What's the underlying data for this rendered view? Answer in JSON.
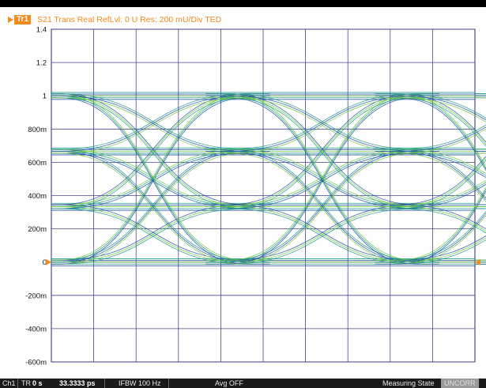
{
  "trace": {
    "badge": "Tr1",
    "label": "S21 Trans Real RefLvl: 0  U Res: 200 mU/Div  TED"
  },
  "chart_data": {
    "type": "line",
    "title": "",
    "xlabel": "",
    "ylabel": "",
    "ylim": [
      -0.6,
      1.4
    ],
    "y_tick_labels": [
      "1.4",
      "1.2",
      "1",
      "800m",
      "600m",
      "400m",
      "200m",
      "0",
      "-200m",
      "-400m",
      "-600m"
    ],
    "x_divisions": 10,
    "grid": true,
    "eye_levels": [
      0,
      0.3333,
      0.6667,
      1
    ],
    "reference_level": 0,
    "note_series": "eye diagram: overlapping 4-level transitions between levels"
  },
  "status": {
    "channel": "Ch1",
    "trace": "TR",
    "time_start": "0 s",
    "time_span": "33.3333 ps",
    "ifbw": "IFBW 100  Hz",
    "avg": "Avg OFF",
    "measuring": "Measuring State",
    "uncorr": "UNCORR"
  },
  "colors": {
    "grid": "#46468c",
    "trace_blue": "#1f4aa8",
    "trace_teal": "#1a9a86",
    "trace_green": "#6cc83c",
    "marker": "#f28a1c"
  }
}
